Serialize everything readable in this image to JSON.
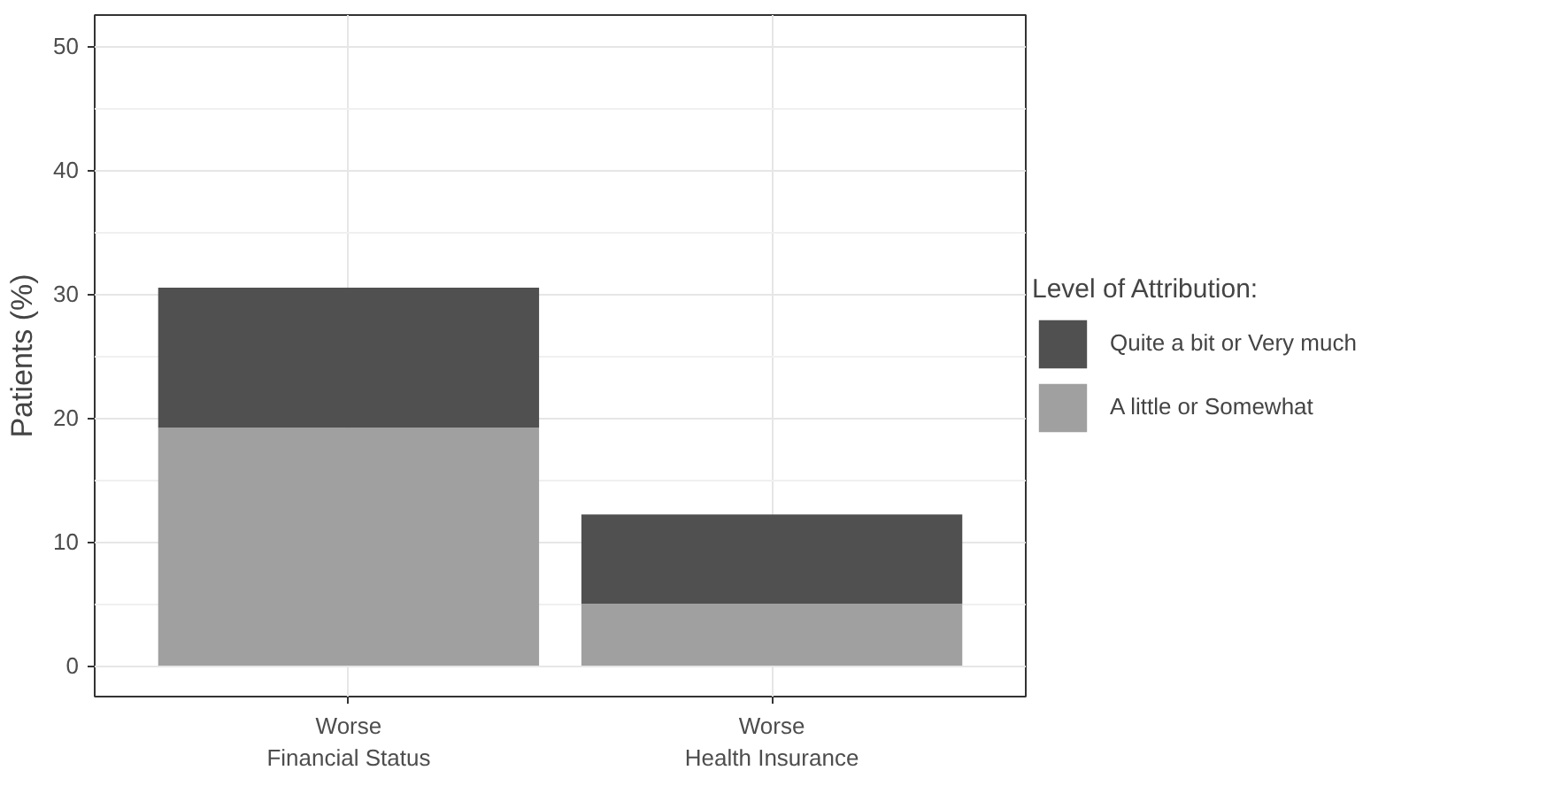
{
  "chart_data": {
    "type": "bar",
    "stacked": true,
    "ylabel": "Patients (%)",
    "legend_title": "Level of Attribution:",
    "legend": "right",
    "categories": [
      "Worse\nFinancial Status",
      "Worse\nHealth Insurance"
    ],
    "series": [
      {
        "name": "A little or Somewhat",
        "color": "#a0a0a0",
        "values": [
          19.2,
          5.0
        ]
      },
      {
        "name": "Quite a bit or Very much",
        "color": "#505050",
        "values": [
          11.3,
          7.2
        ]
      }
    ],
    "ylim": [
      -2.5,
      52.5
    ],
    "yticks": [
      0,
      10,
      20,
      30,
      40,
      50
    ],
    "grid": true
  }
}
